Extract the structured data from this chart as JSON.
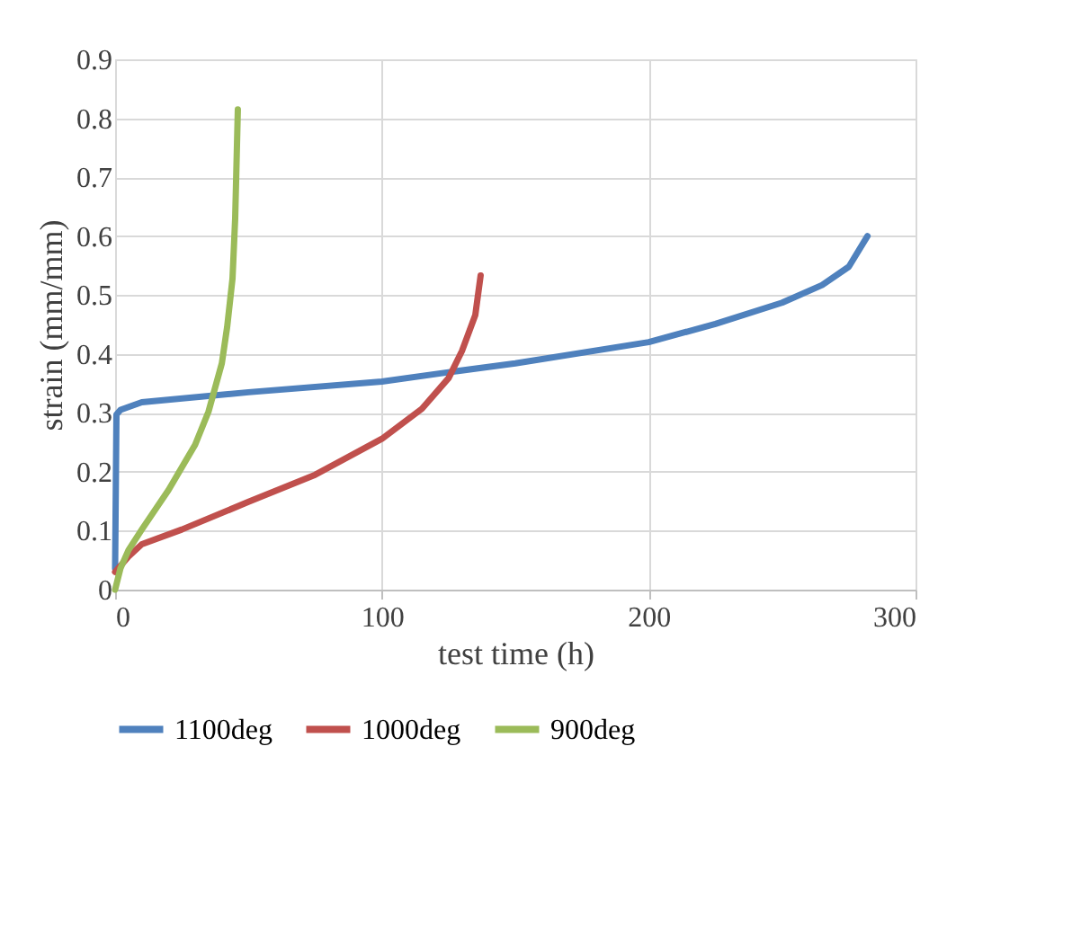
{
  "chart_data": {
    "type": "line",
    "xlabel": "test time (h)",
    "ylabel": "strain (mm/mm)",
    "xlim": [
      0,
      300
    ],
    "xticks": [
      0,
      100,
      200,
      300
    ],
    "ylim": [
      0,
      0.9
    ],
    "yticks": [
      0,
      0.1,
      0.2,
      0.3,
      0.4,
      0.5,
      0.6,
      0.7,
      0.8,
      0.9
    ],
    "grid": true,
    "legend": "bottom",
    "marker": "none",
    "line_style": "solid",
    "series": [
      {
        "name": "1100deg",
        "color": "#4f81bd",
        "x": [
          0,
          0.5,
          2,
          10,
          50,
          100,
          125,
          150,
          200,
          225,
          250,
          265,
          275,
          282
        ],
        "values": [
          0.036,
          0.297,
          0.305,
          0.318,
          0.335,
          0.353,
          0.369,
          0.384,
          0.42,
          0.451,
          0.487,
          0.517,
          0.548,
          0.6
        ]
      },
      {
        "name": "1000deg",
        "color": "#c0504d",
        "x": [
          0,
          5,
          10,
          25,
          50,
          75,
          100,
          115,
          125,
          130,
          135,
          137
        ],
        "values": [
          0.03,
          0.056,
          0.077,
          0.102,
          0.149,
          0.195,
          0.256,
          0.307,
          0.359,
          0.405,
          0.466,
          0.533
        ]
      },
      {
        "name": "900deg",
        "color": "#9bbb59",
        "x": [
          0,
          2,
          5,
          10,
          20,
          30,
          35,
          40,
          42,
          44,
          45,
          46
        ],
        "values": [
          0,
          0.036,
          0.067,
          0.102,
          0.169,
          0.246,
          0.302,
          0.384,
          0.446,
          0.528,
          0.63,
          0.815
        ]
      }
    ]
  }
}
